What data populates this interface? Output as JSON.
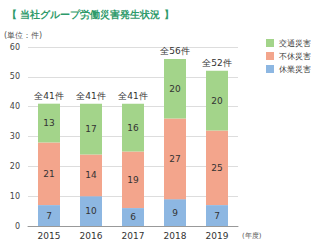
{
  "chart_data": {
    "type": "bar",
    "title": "【 当社グループ労働災害発生状況 】",
    "y_label": "(単位：件)",
    "x_label": "(年度)",
    "categories": [
      "2015",
      "2016",
      "2017",
      "2018",
      "2019"
    ],
    "series": [
      {
        "name": "休業災害",
        "color": "#8db7e2",
        "values": [
          7,
          10,
          6,
          9,
          7
        ]
      },
      {
        "name": "不休災害",
        "color": "#f3a58c",
        "values": [
          21,
          14,
          19,
          27,
          25
        ]
      },
      {
        "name": "交通災害",
        "color": "#a3d48a",
        "values": [
          13,
          17,
          16,
          20,
          20
        ]
      }
    ],
    "annotations": [
      "全41件",
      "全41件",
      "全41件",
      "全56件",
      "全52件"
    ],
    "ylim": [
      0,
      60
    ],
    "yticks": [
      0,
      10,
      20,
      30,
      40,
      50,
      60
    ],
    "stacked": true,
    "data_labels": true,
    "grid": true,
    "legend": "upper right"
  }
}
